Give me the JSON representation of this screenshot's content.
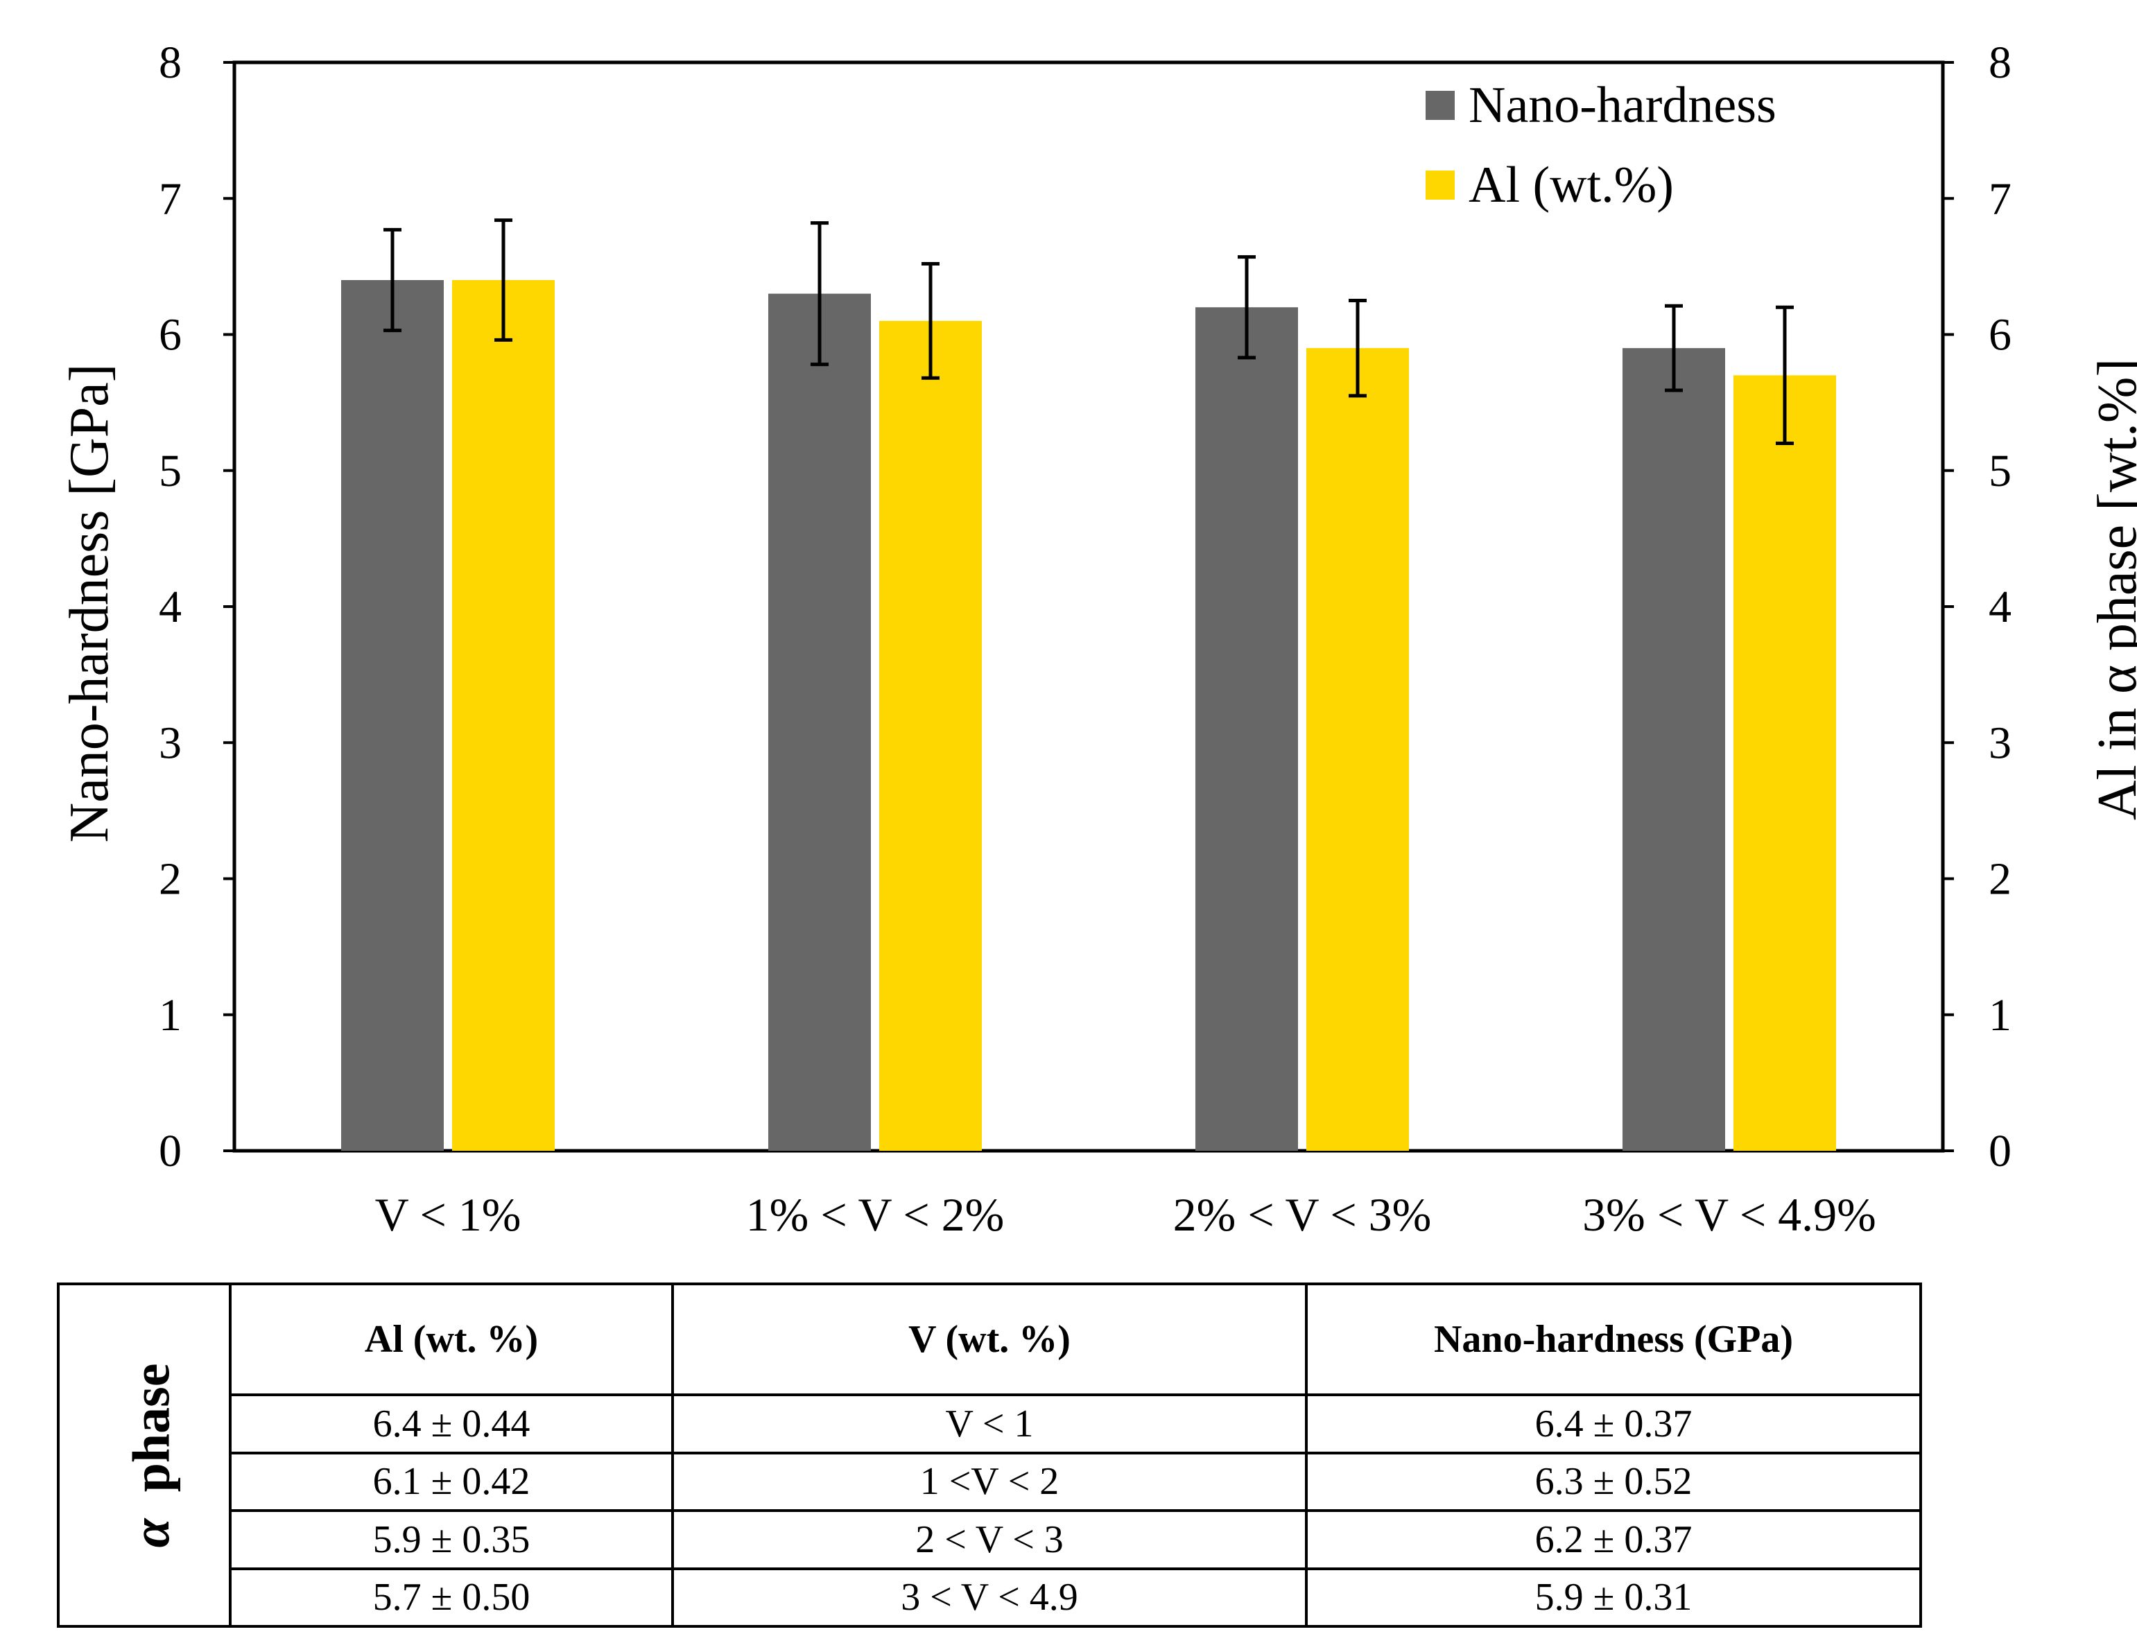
{
  "chart_data": {
    "type": "bar",
    "categories": [
      "V < 1%",
      "1% < V < 2%",
      "2% < V < 3%",
      "3% < V < 4.9%"
    ],
    "series": [
      {
        "name": "Nano-hardness",
        "values": [
          6.4,
          6.3,
          6.2,
          5.9
        ],
        "errors": [
          0.37,
          0.52,
          0.37,
          0.31
        ],
        "color": "#676767",
        "axis": "left"
      },
      {
        "name": "Al (wt.%)",
        "values": [
          6.4,
          6.1,
          5.9,
          5.7
        ],
        "errors": [
          0.44,
          0.42,
          0.35,
          0.5
        ],
        "color": "#FFD700",
        "axis": "right"
      }
    ],
    "ylabel": "Nano-hardness [GPa]",
    "y2label": "Al in α phase [wt.%]",
    "ylim": [
      0,
      8
    ],
    "y2lim": [
      0,
      8
    ],
    "yticks": [
      "0",
      "1",
      "2",
      "3",
      "4",
      "5",
      "6",
      "7",
      "8"
    ],
    "legend_position": "top-right",
    "grid": false
  },
  "table": {
    "phase_label": "α  phase",
    "phase_symbol": "α",
    "phase_word": "phase",
    "headers": [
      "Al (wt. %)",
      "V (wt. %)",
      "Nano-hardness (GPa)"
    ],
    "rows": [
      [
        "6.4 ± 0.44",
        "V < 1",
        "6.4 ± 0.37"
      ],
      [
        "6.1 ± 0.42",
        "1 <V < 2",
        "6.3 ± 0.52"
      ],
      [
        "5.9 ± 0.35",
        "2 < V < 3",
        "6.2 ± 0.37"
      ],
      [
        "5.7 ± 0.50",
        "3 < V < 4.9",
        "5.9 ± 0.31"
      ]
    ]
  }
}
